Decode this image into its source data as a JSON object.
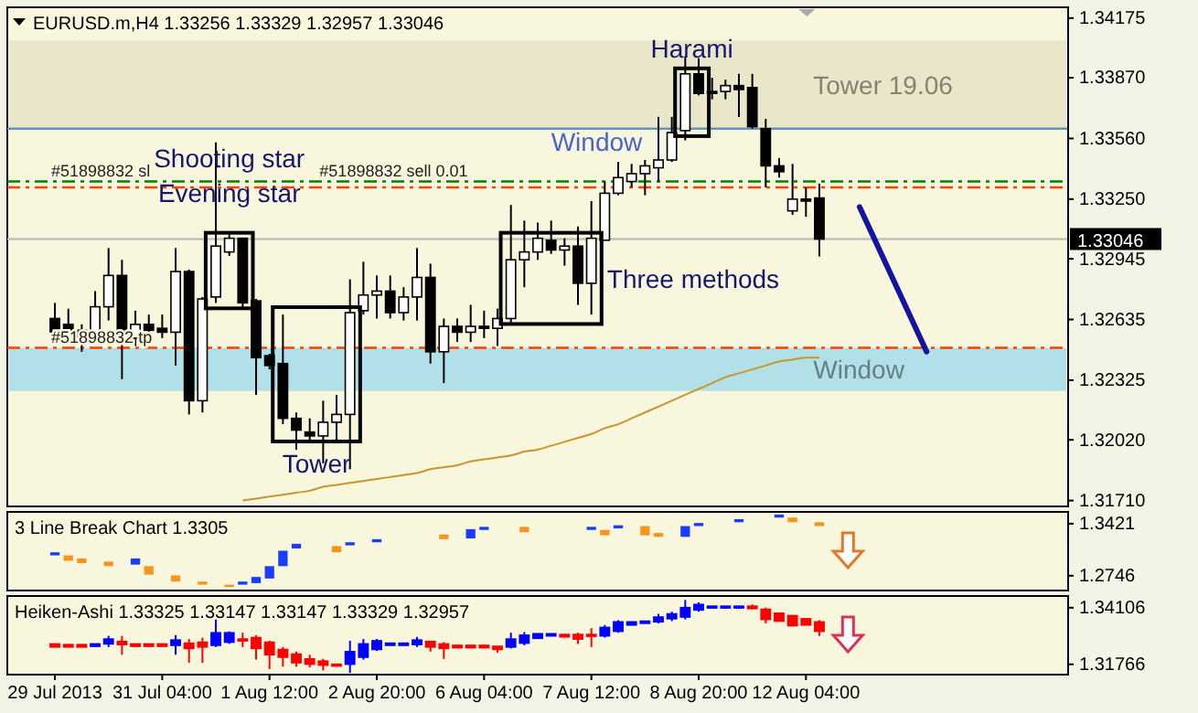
{
  "chart_data": [
    {
      "type": "candlestick",
      "title": "EURUSD.m,H4  1.33256 1.33329 1.32957 1.33046",
      "ohlc": [
        [
          1.3264,
          1.3272,
          1.3252,
          1.3257
        ],
        [
          1.3261,
          1.3269,
          1.3254,
          1.3258
        ],
        [
          1.3258,
          1.3261,
          1.3247,
          1.3255
        ],
        [
          1.3255,
          1.3278,
          1.3254,
          1.327
        ],
        [
          1.327,
          1.33,
          1.3263,
          1.3286
        ],
        [
          1.3286,
          1.3294,
          1.3233,
          1.3257
        ],
        [
          1.3254,
          1.3268,
          1.325,
          1.3261
        ],
        [
          1.3261,
          1.3266,
          1.3254,
          1.3258
        ],
        [
          1.3259,
          1.3266,
          1.3254,
          1.3257
        ],
        [
          1.3257,
          1.33,
          1.324,
          1.3288
        ],
        [
          1.3288,
          1.3289,
          1.3215,
          1.3222
        ],
        [
          1.3222,
          1.3275,
          1.3216,
          1.3274
        ],
        [
          1.3275,
          1.3354,
          1.3272,
          1.3301
        ],
        [
          1.3298,
          1.3307,
          1.3296,
          1.3305
        ],
        [
          1.3305,
          1.3305,
          1.3269,
          1.3272
        ],
        [
          1.3273,
          1.3274,
          1.3225,
          1.3244
        ],
        [
          1.3245,
          1.3246,
          1.3238,
          1.324
        ],
        [
          1.3241,
          1.3266,
          1.321,
          1.3213
        ],
        [
          1.3213,
          1.3216,
          1.3197,
          1.3207
        ],
        [
          1.3206,
          1.3213,
          1.3201,
          1.3204
        ],
        [
          1.3204,
          1.3222,
          1.319,
          1.3211
        ],
        [
          1.3211,
          1.3225,
          1.3201,
          1.3215
        ],
        [
          1.3215,
          1.3284,
          1.3187,
          1.3267
        ],
        [
          1.3268,
          1.3293,
          1.3266,
          1.3276
        ],
        [
          1.3276,
          1.3286,
          1.3264,
          1.3278
        ],
        [
          1.3278,
          1.3286,
          1.3264,
          1.3267
        ],
        [
          1.3267,
          1.328,
          1.3263,
          1.3275
        ],
        [
          1.3275,
          1.33,
          1.3263,
          1.3285
        ],
        [
          1.3285,
          1.3292,
          1.3241,
          1.3247
        ],
        [
          1.3247,
          1.3264,
          1.3231,
          1.326
        ],
        [
          1.326,
          1.3264,
          1.3252,
          1.3257
        ],
        [
          1.3257,
          1.3271,
          1.3252,
          1.326
        ],
        [
          1.326,
          1.3268,
          1.3254,
          1.3259
        ],
        [
          1.3259,
          1.3269,
          1.325,
          1.3264
        ],
        [
          1.3264,
          1.3322,
          1.3261,
          1.3294
        ],
        [
          1.3294,
          1.3314,
          1.328,
          1.3298
        ],
        [
          1.3298,
          1.3313,
          1.3294,
          1.3305
        ],
        [
          1.3304,
          1.3314,
          1.3297,
          1.3299
        ],
        [
          1.3299,
          1.3305,
          1.3291,
          1.3301
        ],
        [
          1.3301,
          1.3311,
          1.3271,
          1.3282
        ],
        [
          1.3282,
          1.3324,
          1.3266,
          1.3305
        ],
        [
          1.3304,
          1.3334,
          1.3304,
          1.3328
        ],
        [
          1.3328,
          1.3344,
          1.3327,
          1.3336
        ],
        [
          1.3334,
          1.3343,
          1.3331,
          1.3338
        ],
        [
          1.3338,
          1.3345,
          1.3327,
          1.3342
        ],
        [
          1.3341,
          1.3367,
          1.3334,
          1.3345
        ],
        [
          1.3345,
          1.3367,
          1.3344,
          1.3359
        ],
        [
          1.336,
          1.3398,
          1.3355,
          1.3389
        ],
        [
          1.3389,
          1.3397,
          1.3378,
          1.3379
        ],
        [
          1.338,
          1.3387,
          1.3376,
          1.3379
        ],
        [
          1.338,
          1.3386,
          1.3376,
          1.3383
        ],
        [
          1.3383,
          1.3389,
          1.3367,
          1.3381
        ],
        [
          1.3382,
          1.3389,
          1.3361,
          1.3362
        ],
        [
          1.3361,
          1.3366,
          1.3331,
          1.3342
        ],
        [
          1.3342,
          1.3346,
          1.3336,
          1.3339
        ],
        [
          1.3319,
          1.3343,
          1.3317,
          1.3325
        ],
        [
          1.3325,
          1.3331,
          1.3316,
          1.3324
        ],
        [
          1.33256,
          1.33329,
          1.32957,
          1.33046
        ],
        null,
        null,
        null,
        null,
        null,
        null,
        null,
        null,
        null,
        null,
        null,
        null,
        null,
        null,
        null
      ],
      "colors": [
        "#000000",
        "#000000",
        "#000000",
        "#ffffff",
        "#ffffff",
        "#000000",
        "#ffffff",
        "#000000",
        "#000000",
        "#ffffff",
        "#000000",
        "#ffffff",
        "#ffffff",
        "#ffffff",
        "#000000",
        "#000000",
        "#000000",
        "#000000",
        "#000000",
        "#000000",
        "#ffffff",
        "#ffffff",
        "#ffffff",
        "#ffffff",
        "#ffffff",
        "#000000",
        "#ffffff",
        "#ffffff",
        "#000000",
        "#ffffff",
        "#000000",
        "#ffffff",
        "#000000",
        "#ffffff",
        "#ffffff",
        "#ffffff",
        "#ffffff",
        "#000000",
        "#ffffff",
        "#000000",
        "#ffffff",
        "#ffffff",
        "#ffffff",
        "#ffffff",
        "#ffffff",
        "#ffffff",
        "#ffffff",
        "#ffffff",
        "#000000",
        "#000000",
        "#ffffff",
        "#000000",
        "#000000",
        "#000000",
        "#000000",
        "#ffffff",
        "#000000",
        "#000000",
        null,
        null,
        null,
        null,
        null,
        null,
        null,
        null,
        null,
        null,
        null,
        null,
        null,
        null,
        null
      ],
      "series": [
        {
          "type": "line",
          "color": "#c8962d",
          "values": [
            null,
            null,
            null,
            null,
            null,
            null,
            null,
            null,
            null,
            null,
            null,
            null,
            null,
            null,
            1.3171,
            1.3172,
            1.3173,
            1.3174,
            1.3175,
            1.3176,
            1.3178,
            1.3179,
            1.318,
            1.3181,
            1.3182,
            1.3183,
            1.3184,
            1.3185,
            1.3187,
            1.3188,
            1.3189,
            1.3191,
            1.3192,
            1.3193,
            1.3194,
            1.3196,
            1.3197,
            1.3199,
            1.3201,
            1.3203,
            1.3205,
            1.3208,
            1.321,
            1.3213,
            1.3216,
            1.3219,
            1.3222,
            1.3225,
            1.3228,
            1.3231,
            1.3234,
            1.3236,
            1.3238,
            1.324,
            1.3242,
            1.3243,
            1.3244,
            1.3244,
            null,
            null,
            null,
            null,
            null,
            null,
            null,
            null,
            null,
            null,
            null,
            null,
            null,
            null,
            null
          ]
        }
      ],
      "ylim": [
        1.3168,
        1.3423
      ],
      "yticks": [
        {
          "value": 1.34175,
          "label": "1.34175"
        },
        {
          "value": 1.3387,
          "label": "1.33870"
        },
        {
          "value": 1.3356,
          "label": "1.33560"
        },
        {
          "value": 1.3325,
          "label": "1.33250"
        },
        {
          "value": 1.32945,
          "label": "1.32945"
        },
        {
          "value": 1.32635,
          "label": "1.32635"
        },
        {
          "value": 1.32325,
          "label": "1.32325"
        },
        {
          "value": 1.3202,
          "label": "1.32020"
        },
        {
          "value": 1.3171,
          "label": "1.31710"
        }
      ],
      "tick_labels": "y",
      "bands": [
        {
          "axis": "y",
          "from": 1.3361,
          "to": 1.3406,
          "label": "Tower 19.06",
          "color": "#e9e6c9"
        },
        {
          "axis": "y",
          "from": 1.3227,
          "to": 1.3249,
          "label": "Window",
          "color": "#b2e0e8"
        }
      ],
      "ref_lines": [
        {
          "axis": "y",
          "value": 1.3361,
          "label": "Window",
          "color": "#5a9cc0"
        },
        {
          "axis": "y",
          "value": 1.3334,
          "label": "#51898832 sell 0.01",
          "color": "#008000",
          "line_style": "dashed"
        },
        {
          "axis": "y",
          "value": 1.3331,
          "label": "#51898832 sl",
          "color": "#ff4000",
          "line_style": "dashed"
        },
        {
          "axis": "y",
          "value": 1.3249,
          "label": "#51898832 tp",
          "color": "#ff4000",
          "line_style": "dashed"
        },
        {
          "axis": "y",
          "value": 1.33046,
          "label": "1.33046",
          "color": "#c0c0c0"
        }
      ],
      "annotations": [
        "Shooting star",
        "Evening star",
        "Tower",
        "Three methods",
        "Harami"
      ]
    },
    {
      "type": "bar",
      "title": "3 Line Break Chart 1.3305",
      "values": [
        0.004,
        0.007,
        0.006,
        null,
        0.006,
        null,
        0.008,
        0.011,
        null,
        0.008,
        null,
        0.004,
        null,
        0.003,
        0.004,
        0.008,
        0.016,
        0.02,
        0.006,
        null,
        null,
        0.008,
        0.004,
        null,
        0.004,
        null,
        null,
        null,
        null,
        0.006,
        null,
        0.012,
        0.004,
        null,
        null,
        0.007,
        null,
        null,
        null,
        null,
        0.004,
        0.007,
        0.004,
        null,
        0.012,
        0.005,
        null,
        0.014,
        0.004,
        null,
        null,
        0.004,
        null,
        null,
        0.004,
        0.006,
        null,
        0.005,
        null,
        null,
        null,
        null,
        null,
        null,
        null,
        null,
        null,
        null,
        null,
        null,
        null,
        null,
        null
      ],
      "base": [
        1.301,
        1.294,
        1.291,
        null,
        1.287,
        null,
        1.289,
        1.276,
        null,
        1.267,
        null,
        1.263,
        null,
        1.26,
        1.263,
        1.265,
        1.271,
        1.287,
        1.31,
        null,
        null,
        1.305,
        1.314,
        null,
        1.318,
        null,
        null,
        null,
        null,
        1.322,
        null,
        1.323,
        1.334,
        null,
        null,
        1.331,
        null,
        null,
        null,
        null,
        1.334,
        1.327,
        1.336,
        null,
        1.327,
        1.325,
        null,
        1.325,
        1.339,
        null,
        null,
        1.344,
        null,
        null,
        1.35,
        1.344,
        null,
        1.339,
        null,
        null,
        null,
        null,
        null,
        null,
        null,
        null,
        null,
        null,
        null,
        null,
        null,
        null,
        null
      ],
      "colors": [
        "#1a3cff",
        "#f7941d",
        "#f7941d",
        null,
        "#f7941d",
        null,
        "#1a3cff",
        "#f7941d",
        null,
        "#f7941d",
        null,
        "#f7941d",
        null,
        "#f7941d",
        "#1a3cff",
        "#1a3cff",
        "#1a3cff",
        "#1a3cff",
        "#1a3cff",
        null,
        null,
        "#f7941d",
        "#1a3cff",
        null,
        "#1a3cff",
        null,
        null,
        null,
        null,
        "#f7941d",
        null,
        "#1a3cff",
        "#1a3cff",
        null,
        null,
        "#f7941d",
        null,
        null,
        null,
        null,
        "#1a3cff",
        "#f7941d",
        "#1a3cff",
        null,
        "#f7941d",
        "#f7941d",
        null,
        "#1a3cff",
        "#1a3cff",
        null,
        null,
        "#1a3cff",
        null,
        null,
        "#1a3cff",
        "#f7941d",
        null,
        "#f7941d",
        null,
        null,
        null,
        null,
        null,
        null,
        null,
        null,
        null,
        null,
        null,
        null,
        null,
        null,
        null
      ],
      "ylim": [
        1.2554,
        1.3574
      ],
      "yticks": [
        1.3421,
        1.2746
      ],
      "tick_labels": "y"
    },
    {
      "type": "candlestick",
      "title": "Heiken-Ashi 1.33325 1.33147 1.33147 1.33329 1.32957",
      "categories": [
        "29 Jul 2013",
        null,
        null,
        null,
        null,
        null,
        null,
        null,
        "31 Jul 04:00",
        null,
        null,
        null,
        null,
        null,
        null,
        null,
        "1 Aug 12:00",
        null,
        null,
        null,
        null,
        null,
        null,
        null,
        "2 Aug 20:00",
        null,
        null,
        null,
        null,
        null,
        null,
        null,
        "6 Aug 04:00",
        null,
        null,
        null,
        null,
        null,
        null,
        null,
        "7 Aug 12:00",
        null,
        null,
        null,
        null,
        null,
        null,
        null,
        "8 Aug 20:00",
        null,
        null,
        null,
        null,
        null,
        null,
        null,
        "12 Aug 04:00",
        null,
        null,
        null,
        null,
        null,
        null,
        null,
        null,
        null,
        null,
        null,
        null,
        null,
        null,
        null,
        null
      ],
      "ohlc": [
        [
          1.3261,
          1.3261,
          1.3248,
          1.3248
        ],
        [
          1.3258,
          1.3258,
          1.3248,
          1.3248
        ],
        [
          1.3258,
          1.3258,
          1.3248,
          1.3248
        ],
        [
          1.3251,
          1.3261,
          1.3251,
          1.3261
        ],
        [
          1.3261,
          1.3294,
          1.3248,
          1.3281
        ],
        [
          1.3271,
          1.3294,
          1.3216,
          1.3258
        ],
        [
          1.3261,
          1.3261,
          1.3251,
          1.3251
        ],
        [
          1.3261,
          1.3261,
          1.3251,
          1.3251
        ],
        [
          1.3261,
          1.3261,
          1.3251,
          1.3251
        ],
        [
          1.3255,
          1.3297,
          1.3216,
          1.3277
        ],
        [
          1.3264,
          1.3281,
          1.3183,
          1.3242
        ],
        [
          1.3268,
          1.3287,
          1.3183,
          1.3248
        ],
        [
          1.3255,
          1.3362,
          1.3248,
          1.3307
        ],
        [
          1.3268,
          1.3313,
          1.3261,
          1.3307
        ],
        [
          1.3281,
          1.3307,
          1.3248,
          1.3274
        ],
        [
          1.3287,
          1.3297,
          1.3196,
          1.3242
        ],
        [
          1.3268,
          1.3274,
          1.3157,
          1.3216
        ],
        [
          1.3238,
          1.3248,
          1.3167,
          1.3206
        ],
        [
          1.3219,
          1.3229,
          1.3167,
          1.3183
        ],
        [
          1.3199,
          1.3216,
          1.3164,
          1.3177
        ],
        [
          1.319,
          1.3199,
          1.3151,
          1.3173
        ],
        [
          1.3177,
          1.3177,
          1.317,
          1.317
        ],
        [
          1.3177,
          1.3274,
          1.3141,
          1.3229
        ],
        [
          1.3206,
          1.3281,
          1.3196,
          1.3261
        ],
        [
          1.3238,
          1.3281,
          1.3232,
          1.3274
        ],
        [
          1.3255,
          1.3264,
          1.3255,
          1.3264
        ],
        [
          1.3255,
          1.3264,
          1.3255,
          1.3264
        ],
        [
          1.3258,
          1.329,
          1.3248,
          1.3277
        ],
        [
          1.3271,
          1.3271,
          1.3229,
          1.3248
        ],
        [
          1.3261,
          1.3268,
          1.3199,
          1.3242
        ],
        [
          1.3255,
          1.3255,
          1.3245,
          1.3245
        ],
        [
          1.3255,
          1.3255,
          1.3245,
          1.3245
        ],
        [
          1.3255,
          1.3255,
          1.3245,
          1.3245
        ],
        [
          1.3251,
          1.3251,
          1.3225,
          1.3238
        ],
        [
          1.3248,
          1.3307,
          1.3242,
          1.3281
        ],
        [
          1.3264,
          1.331,
          1.3255,
          1.3297
        ],
        [
          1.3284,
          1.3303,
          1.3284,
          1.3303
        ],
        [
          1.3294,
          1.3303,
          1.3294,
          1.3303
        ],
        [
          1.33,
          1.33,
          1.329,
          1.329
        ],
        [
          1.33,
          1.3307,
          1.3261,
          1.3281
        ],
        [
          1.33,
          1.3326,
          1.3248,
          1.3294
        ],
        [
          1.3294,
          1.3339,
          1.3287,
          1.3329
        ],
        [
          1.3313,
          1.3359,
          1.3307,
          1.3352
        ],
        [
          1.3339,
          1.3352,
          1.3339,
          1.3352
        ],
        [
          1.3346,
          1.3355,
          1.3346,
          1.3355
        ],
        [
          1.3352,
          1.3385,
          1.3346,
          1.3372
        ],
        [
          1.3365,
          1.3394,
          1.3355,
          1.3385
        ],
        [
          1.3372,
          1.3443,
          1.3362,
          1.3411
        ],
        [
          1.3401,
          1.3433,
          1.3394,
          1.3424
        ],
        [
          1.3411,
          1.3417,
          1.3411,
          1.3417
        ],
        [
          1.3411,
          1.3417,
          1.3411,
          1.3417
        ],
        [
          1.3411,
          1.3417,
          1.3411,
          1.3417
        ],
        [
          1.3417,
          1.3424,
          1.3404,
          1.3407
        ],
        [
          1.3404,
          1.3411,
          1.3346,
          1.3362
        ],
        [
          1.3388,
          1.3388,
          1.3355,
          1.3355
        ],
        [
          1.3378,
          1.3378,
          1.3336,
          1.3336
        ],
        [
          1.3365,
          1.3365,
          1.3339,
          1.3339
        ],
        [
          1.3352,
          1.3359,
          1.3294,
          1.3313
        ],
        null,
        null,
        null,
        null,
        null,
        null,
        null,
        null,
        null,
        null,
        null,
        null,
        null,
        null,
        null
      ],
      "colors": [
        "#ff0000",
        "#ff0000",
        "#ff0000",
        "#0000ff",
        "#0000ff",
        "#ff0000",
        "#ff0000",
        "#ff0000",
        "#ff0000",
        "#0000ff",
        "#ff0000",
        "#ff0000",
        "#0000ff",
        "#0000ff",
        "#ff0000",
        "#ff0000",
        "#ff0000",
        "#ff0000",
        "#ff0000",
        "#ff0000",
        "#ff0000",
        "#ff0000",
        "#0000ff",
        "#0000ff",
        "#0000ff",
        "#0000ff",
        "#0000ff",
        "#0000ff",
        "#ff0000",
        "#ff0000",
        "#ff0000",
        "#ff0000",
        "#ff0000",
        "#ff0000",
        "#0000ff",
        "#0000ff",
        "#0000ff",
        "#0000ff",
        "#ff0000",
        "#ff0000",
        "#ff0000",
        "#0000ff",
        "#0000ff",
        "#0000ff",
        "#0000ff",
        "#0000ff",
        "#0000ff",
        "#0000ff",
        "#0000ff",
        "#0000ff",
        "#0000ff",
        "#0000ff",
        "#ff0000",
        "#ff0000",
        "#ff0000",
        "#ff0000",
        "#ff0000",
        "#ff0000",
        null,
        null,
        null,
        null,
        null,
        null,
        null,
        null,
        null,
        null,
        null,
        null,
        null,
        null,
        null
      ],
      "ylim": [
        1.3134,
        1.3459
      ],
      "yticks": [
        {
          "value": 1.34106,
          "label": "1.34106"
        },
        {
          "value": 1.31766,
          "label": "1.31766"
        }
      ]
    }
  ]
}
